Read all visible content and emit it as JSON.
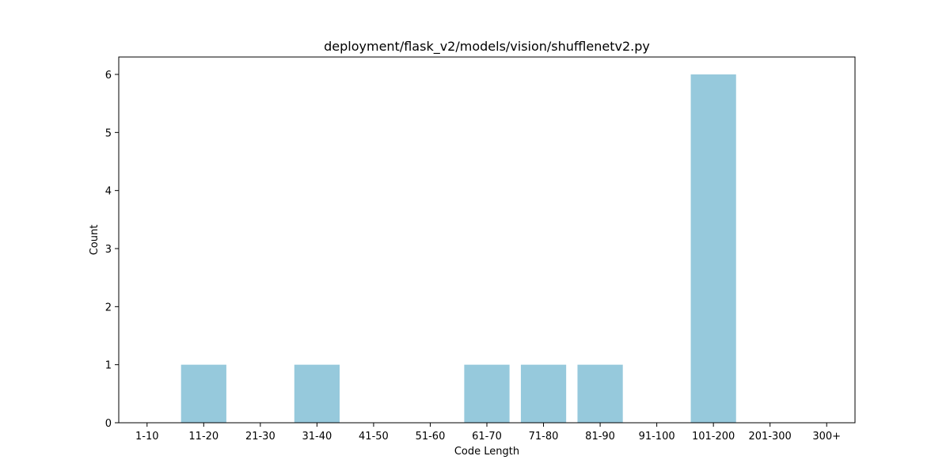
{
  "chart_data": {
    "type": "bar",
    "title": "deployment/flask_v2/models/vision/shufflenetv2.py",
    "xlabel": "Code Length",
    "ylabel": "Count",
    "categories": [
      "1-10",
      "11-20",
      "21-30",
      "31-40",
      "41-50",
      "51-60",
      "61-70",
      "71-80",
      "81-90",
      "91-100",
      "101-200",
      "201-300",
      "300+"
    ],
    "values": [
      0,
      1,
      0,
      1,
      0,
      0,
      1,
      1,
      1,
      0,
      6,
      0,
      0
    ],
    "ylim": [
      0,
      6.3
    ],
    "yticks": [
      0,
      1,
      2,
      3,
      4,
      5,
      6
    ],
    "bar_color": "#96c9dc",
    "grid": false,
    "legend": "none"
  }
}
